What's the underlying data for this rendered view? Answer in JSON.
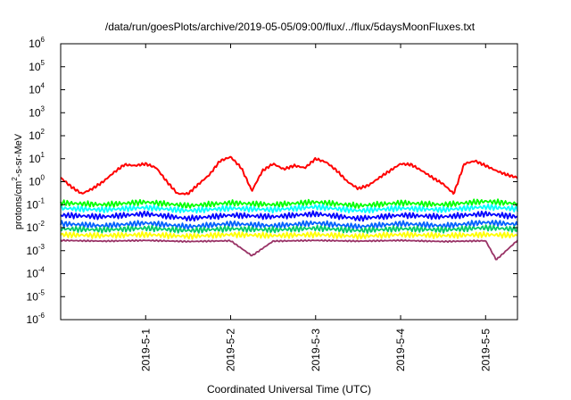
{
  "chart_data": {
    "type": "line",
    "title": "/data/run/goesPlots/archive/2019-05-05/09:00/flux/../flux/5daysMoonFluxes.txt",
    "xlabel": "Coordinated Universal Time (UTC)",
    "ylabel": "protons/cm²-s-sr-MeV",
    "ylabel_parts": {
      "base": "protons/cm",
      "sup": "2",
      "rest": "-s-sr-MeV"
    },
    "y_scale": "log",
    "ylim": [
      1e-06,
      1000000.0
    ],
    "y_ticks": [
      {
        "value": 1e-06,
        "base": "10",
        "exp": "-6"
      },
      {
        "value": 1e-05,
        "base": "10",
        "exp": "-5"
      },
      {
        "value": 0.0001,
        "base": "10",
        "exp": "-4"
      },
      {
        "value": 0.001,
        "base": "10",
        "exp": "-3"
      },
      {
        "value": 0.01,
        "base": "10",
        "exp": "-2"
      },
      {
        "value": 0.1,
        "base": "10",
        "exp": "-1"
      },
      {
        "value": 1,
        "base": "10",
        "exp": "0"
      },
      {
        "value": 10,
        "base": "10",
        "exp": "1"
      },
      {
        "value": 100,
        "base": "10",
        "exp": "2"
      },
      {
        "value": 1000.0,
        "base": "10",
        "exp": "3"
      },
      {
        "value": 10000.0,
        "base": "10",
        "exp": "4"
      },
      {
        "value": 100000.0,
        "base": "10",
        "exp": "5"
      },
      {
        "value": 1000000.0,
        "base": "10",
        "exp": "6"
      }
    ],
    "xlim": [
      "2019-04-30 00:00",
      "2019-05-05 09:00"
    ],
    "x_ticks": [
      "2019-5-1",
      "2019-5-2",
      "2019-5-3",
      "2019-5-4",
      "2019-5-5"
    ],
    "grid": false,
    "legend": "none",
    "series": [
      {
        "color": "#ff0000",
        "x": [
          "2019-04-30 00:00",
          "2019-04-30 03:00",
          "2019-04-30 06:00",
          "2019-04-30 09:00",
          "2019-04-30 12:00",
          "2019-04-30 15:00",
          "2019-04-30 18:00",
          "2019-04-30 21:00",
          "2019-05-01 00:00",
          "2019-05-01 03:00",
          "2019-05-01 06:00",
          "2019-05-01 09:00",
          "2019-05-01 12:00",
          "2019-05-01 15:00",
          "2019-05-01 18:00",
          "2019-05-01 21:00",
          "2019-05-02 00:00",
          "2019-05-02 03:00",
          "2019-05-02 06:00",
          "2019-05-02 09:00",
          "2019-05-02 12:00",
          "2019-05-02 15:00",
          "2019-05-02 18:00",
          "2019-05-02 21:00",
          "2019-05-03 00:00",
          "2019-05-03 03:00",
          "2019-05-03 06:00",
          "2019-05-03 09:00",
          "2019-05-03 12:00",
          "2019-05-03 15:00",
          "2019-05-03 18:00",
          "2019-05-03 21:00",
          "2019-05-04 00:00",
          "2019-05-04 03:00",
          "2019-05-04 06:00",
          "2019-05-04 09:00",
          "2019-05-04 12:00",
          "2019-05-04 15:00",
          "2019-05-04 18:00",
          "2019-05-04 21:00",
          "2019-05-05 00:00",
          "2019-05-05 03:00",
          "2019-05-05 06:00",
          "2019-05-05 09:00"
        ],
        "y": [
          1.5,
          0.6,
          0.3,
          0.5,
          1.0,
          2.5,
          5.5,
          5.0,
          6.0,
          4.0,
          1.0,
          0.3,
          0.3,
          0.8,
          2.0,
          8.0,
          12.0,
          4.0,
          0.4,
          3.0,
          6.0,
          3.5,
          5.0,
          4.0,
          10.0,
          7.0,
          3.0,
          1.0,
          0.5,
          0.7,
          1.5,
          3.0,
          6.0,
          5.5,
          3.0,
          1.5,
          0.8,
          0.3,
          6.0,
          8.0,
          5.0,
          3.0,
          2.0,
          1.5
        ]
      },
      {
        "color": "#00ff00",
        "x": [
          "2019-04-30 00:00",
          "2019-04-30 12:00",
          "2019-05-01 00:00",
          "2019-05-01 12:00",
          "2019-05-02 00:00",
          "2019-05-02 12:00",
          "2019-05-03 00:00",
          "2019-05-03 12:00",
          "2019-05-04 00:00",
          "2019-05-04 12:00",
          "2019-05-05 00:00",
          "2019-05-05 09:00"
        ],
        "y": [
          0.12,
          0.1,
          0.13,
          0.09,
          0.12,
          0.1,
          0.13,
          0.09,
          0.12,
          0.1,
          0.14,
          0.11
        ]
      },
      {
        "color": "#00ffff",
        "x": [
          "2019-04-30 00:00",
          "2019-04-30 12:00",
          "2019-05-01 00:00",
          "2019-05-01 12:00",
          "2019-05-02 00:00",
          "2019-05-02 12:00",
          "2019-05-03 00:00",
          "2019-05-03 12:00",
          "2019-05-04 00:00",
          "2019-05-04 12:00",
          "2019-05-05 00:00",
          "2019-05-05 09:00"
        ],
        "y": [
          0.07,
          0.06,
          0.075,
          0.055,
          0.07,
          0.06,
          0.08,
          0.055,
          0.07,
          0.06,
          0.08,
          0.065
        ]
      },
      {
        "color": "#0000ff",
        "x": [
          "2019-04-30 00:00",
          "2019-04-30 12:00",
          "2019-05-01 00:00",
          "2019-05-01 12:00",
          "2019-05-02 00:00",
          "2019-05-02 12:00",
          "2019-05-03 00:00",
          "2019-05-03 12:00",
          "2019-05-04 00:00",
          "2019-05-04 12:00",
          "2019-05-05 00:00",
          "2019-05-05 09:00"
        ],
        "y": [
          0.035,
          0.03,
          0.04,
          0.025,
          0.035,
          0.03,
          0.04,
          0.025,
          0.035,
          0.03,
          0.04,
          0.03
        ]
      },
      {
        "color": "#0060ff",
        "x": [
          "2019-04-30 00:00",
          "2019-04-30 12:00",
          "2019-05-01 00:00",
          "2019-05-01 12:00",
          "2019-05-02 00:00",
          "2019-05-02 12:00",
          "2019-05-03 00:00",
          "2019-05-03 12:00",
          "2019-05-04 00:00",
          "2019-05-04 12:00",
          "2019-05-05 00:00",
          "2019-05-05 09:00"
        ],
        "y": [
          0.015,
          0.012,
          0.016,
          0.011,
          0.015,
          0.012,
          0.016,
          0.011,
          0.015,
          0.012,
          0.017,
          0.014
        ]
      },
      {
        "color": "#00cc66",
        "x": [
          "2019-04-30 00:00",
          "2019-04-30 12:00",
          "2019-05-01 00:00",
          "2019-05-01 12:00",
          "2019-05-02 00:00",
          "2019-05-02 12:00",
          "2019-05-03 00:00",
          "2019-05-03 12:00",
          "2019-05-04 00:00",
          "2019-05-04 12:00",
          "2019-05-05 00:00",
          "2019-05-05 09:00"
        ],
        "y": [
          0.009,
          0.008,
          0.0095,
          0.0075,
          0.009,
          0.008,
          0.0095,
          0.0075,
          0.009,
          0.008,
          0.01,
          0.0085
        ]
      },
      {
        "color": "#ffff00",
        "x": [
          "2019-04-30 00:00",
          "2019-04-30 12:00",
          "2019-05-01 00:00",
          "2019-05-01 12:00",
          "2019-05-02 00:00",
          "2019-05-02 12:00",
          "2019-05-03 00:00",
          "2019-05-03 12:00",
          "2019-05-04 00:00",
          "2019-05-04 12:00",
          "2019-05-05 00:00",
          "2019-05-05 09:00"
        ],
        "y": [
          0.005,
          0.0045,
          0.005,
          0.0042,
          0.005,
          0.0045,
          0.005,
          0.0042,
          0.005,
          0.0045,
          0.005,
          0.0046
        ]
      },
      {
        "color": "#993366",
        "x": [
          "2019-04-30 00:00",
          "2019-04-30 12:00",
          "2019-05-01 00:00",
          "2019-05-01 12:00",
          "2019-05-02 00:00",
          "2019-05-02 06:00",
          "2019-05-02 12:00",
          "2019-05-03 00:00",
          "2019-05-03 12:00",
          "2019-05-04 00:00",
          "2019-05-04 12:00",
          "2019-05-05 00:00",
          "2019-05-05 03:00",
          "2019-05-05 09:00"
        ],
        "y": [
          0.0028,
          0.0026,
          0.0028,
          0.0025,
          0.0027,
          0.0006,
          0.0026,
          0.0028,
          0.0026,
          0.0028,
          0.0025,
          0.0027,
          0.0004,
          0.0028
        ]
      }
    ]
  }
}
